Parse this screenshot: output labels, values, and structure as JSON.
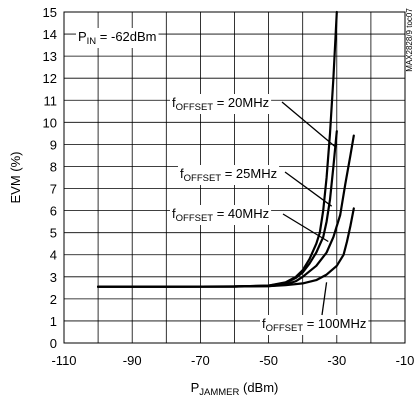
{
  "chart_data": {
    "type": "line",
    "title": "",
    "xlabel": {
      "main": "P",
      "sub": "JAMMER",
      "unit": " (dBm)"
    },
    "ylabel": "EVM (%)",
    "xlim": [
      -110,
      -10
    ],
    "ylim": [
      0,
      15
    ],
    "x_ticks": [
      -110,
      -90,
      -70,
      -50,
      -30,
      -10
    ],
    "x_tick_labels": [
      "-110",
      "-90",
      "-70",
      "-50",
      "-30",
      "-10"
    ],
    "y_ticks": [
      0,
      1,
      2,
      3,
      4,
      5,
      6,
      7,
      8,
      9,
      10,
      11,
      12,
      13,
      14,
      15
    ],
    "y_tick_labels": [
      "0",
      "1",
      "2",
      "3",
      "4",
      "5",
      "6",
      "7",
      "8",
      "9",
      "10",
      "11",
      "12",
      "13",
      "14",
      "15"
    ],
    "grid": true,
    "condition": {
      "main": "P",
      "sub": "IN",
      "rest": " = -62dBm"
    },
    "watermark": "MAX2828/9 toc07",
    "series": [
      {
        "label": {
          "main": "f",
          "sub": "OFFSET",
          "rest": " = 20MHz"
        },
        "points": [
          [
            -100,
            2.55
          ],
          [
            -80,
            2.55
          ],
          [
            -60,
            2.56
          ],
          [
            -50,
            2.6
          ],
          [
            -45,
            2.75
          ],
          [
            -42,
            3.0
          ],
          [
            -40,
            3.3
          ],
          [
            -38,
            3.8
          ],
          [
            -36,
            4.5
          ],
          [
            -35,
            5.0
          ],
          [
            -34,
            6.0
          ],
          [
            -33,
            7.5
          ],
          [
            -32,
            9.5
          ],
          [
            -31,
            12.0
          ],
          [
            -30,
            15.0
          ]
        ]
      },
      {
        "label": {
          "main": "f",
          "sub": "OFFSET",
          "rest": " = 25MHz"
        },
        "points": [
          [
            -100,
            2.55
          ],
          [
            -80,
            2.55
          ],
          [
            -60,
            2.56
          ],
          [
            -50,
            2.6
          ],
          [
            -45,
            2.72
          ],
          [
            -42,
            2.95
          ],
          [
            -40,
            3.2
          ],
          [
            -38,
            3.6
          ],
          [
            -36,
            4.1
          ],
          [
            -34,
            4.8
          ],
          [
            -33,
            5.5
          ],
          [
            -32,
            6.5
          ],
          [
            -31,
            8.0
          ],
          [
            -30,
            9.6
          ]
        ]
      },
      {
        "label": {
          "main": "f",
          "sub": "OFFSET",
          "rest": " = 40MHz"
        },
        "points": [
          [
            -100,
            2.55
          ],
          [
            -80,
            2.55
          ],
          [
            -60,
            2.56
          ],
          [
            -50,
            2.58
          ],
          [
            -45,
            2.65
          ],
          [
            -42,
            2.8
          ],
          [
            -40,
            3.0
          ],
          [
            -36,
            3.5
          ],
          [
            -33,
            4.1
          ],
          [
            -31,
            4.8
          ],
          [
            -29,
            5.8
          ],
          [
            -27.5,
            7.2
          ],
          [
            -26,
            8.5
          ],
          [
            -25,
            9.4
          ]
        ]
      },
      {
        "label": {
          "main": "f",
          "sub": "OFFSET",
          "rest": " = 100MHz"
        },
        "points": [
          [
            -100,
            2.55
          ],
          [
            -80,
            2.55
          ],
          [
            -60,
            2.56
          ],
          [
            -50,
            2.58
          ],
          [
            -45,
            2.62
          ],
          [
            -40,
            2.7
          ],
          [
            -36,
            2.85
          ],
          [
            -33,
            3.1
          ],
          [
            -30,
            3.5
          ],
          [
            -28,
            4.0
          ],
          [
            -27,
            4.6
          ],
          [
            -26,
            5.3
          ],
          [
            -25,
            6.1
          ]
        ]
      }
    ],
    "annotations": [
      {
        "series_index": 0,
        "line_to": [
          -30.5,
          8.9
        ]
      },
      {
        "series_index": 1,
        "line_to": [
          -31.5,
          6.2
        ]
      },
      {
        "series_index": 2,
        "line_to": [
          -32.5,
          4.6
        ]
      },
      {
        "series_index": 3,
        "line_to": [
          -33.0,
          2.75
        ]
      }
    ]
  }
}
